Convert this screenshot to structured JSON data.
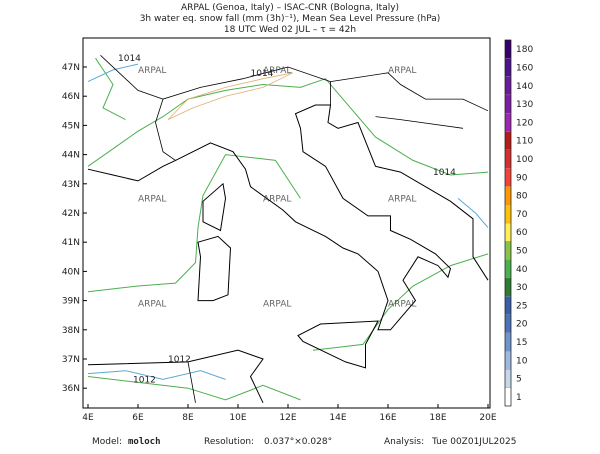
{
  "header": {
    "lines": [
      "ARPAL (Genoa, Italy)  –  ISAC-CNR (Bologna, Italy)",
      "3h water eq. snow fall (mm (3h)⁻¹), Mean Sea Level Pressure (hPa)",
      "18 UTC Wed 02 JUL  –  τ = 42h"
    ]
  },
  "map": {
    "lat_labels": [
      "47N",
      "46N",
      "45N",
      "44N",
      "43N",
      "42N",
      "41N",
      "40N",
      "39N",
      "38N",
      "37N",
      "36N"
    ],
    "lon_labels": [
      "4E",
      "6E",
      "8E",
      "10E",
      "12E",
      "14E",
      "16E",
      "18E",
      "20E"
    ],
    "watermark": "ARPAL",
    "contour_labels": [
      "1014",
      "1012"
    ]
  },
  "colorbar": {
    "levels": [
      1,
      5,
      10,
      15,
      20,
      25,
      30,
      40,
      50,
      60,
      70,
      80,
      90,
      100,
      110,
      120,
      130,
      140,
      160,
      180
    ],
    "colors": [
      "#ffffff",
      "#c8d7ec",
      "#9fb8de",
      "#6f95cc",
      "#4c72b8",
      "#3a5ea8",
      "#2e7d32",
      "#4caf50",
      "#8bc34a",
      "#ffee58",
      "#ffc107",
      "#ff9800",
      "#f44336",
      "#d32f2f",
      "#b71c1c",
      "#9c27b0",
      "#7b1fa2",
      "#6a1b9a",
      "#4a148c",
      "#38006b"
    ]
  },
  "footer": {
    "model_label": "Model:",
    "model": "moloch",
    "resolution_label": "Resolution:",
    "resolution": "0.037°×0.028°",
    "analysis_label": "Analysis:",
    "analysis": "Tue 00Z01JUL2025"
  }
}
